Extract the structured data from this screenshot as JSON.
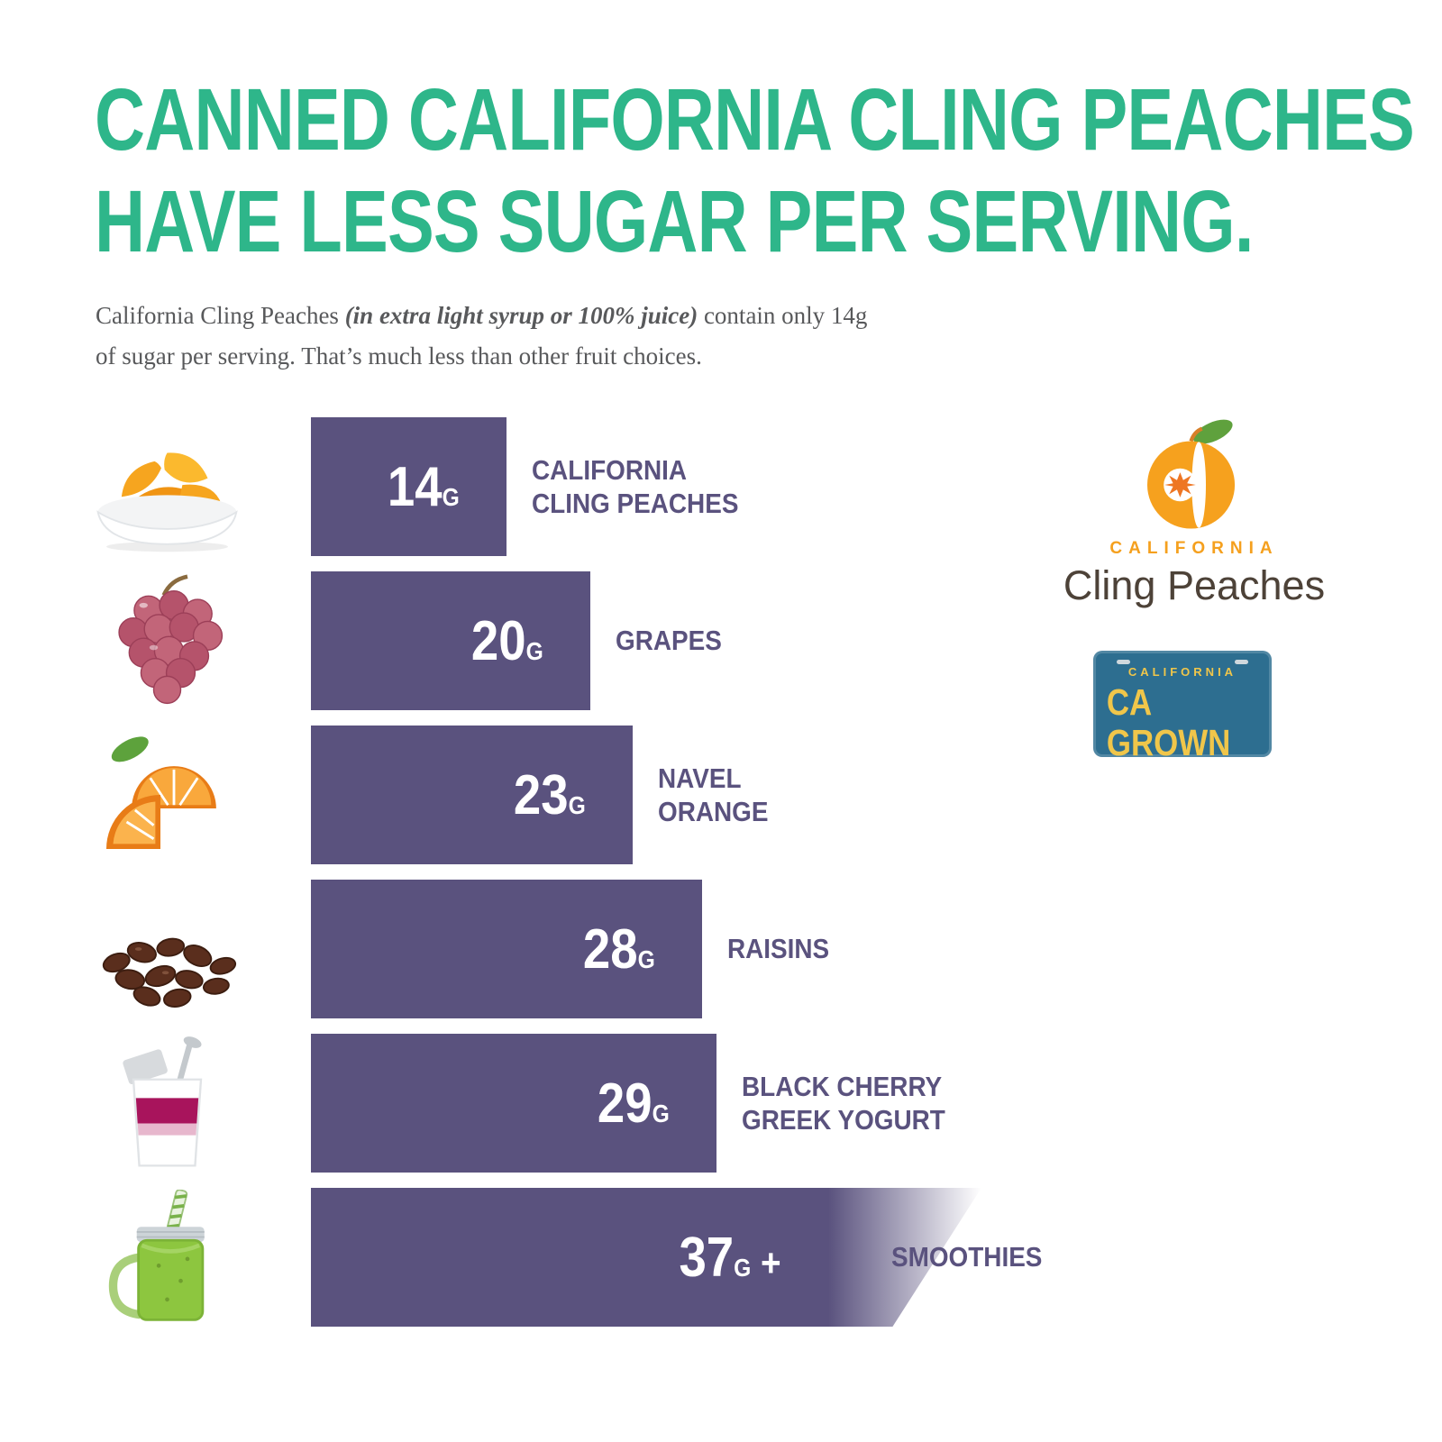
{
  "title": {
    "line1": "CANNED CALIFORNIA CLING PEACHES",
    "line2": "HAVE LESS SUGAR PER SERVING."
  },
  "subtitle": {
    "part1": "California Cling Peaches ",
    "part2": "(in extra light syrup or 100% juice)",
    "part3": " contain only 14g of sugar per serving. That’s much less than other fruit choices."
  },
  "chart_data": {
    "type": "bar",
    "orientation": "horizontal",
    "title": "Grams of sugar per serving by fruit choice",
    "unit": "g",
    "xlim": [
      0,
      40
    ],
    "grid": false,
    "legend": false,
    "bar_color": "#5a527e",
    "categories": [
      "California Cling Peaches",
      "Grapes",
      "Navel Orange",
      "Raisins",
      "Black Cherry Greek Yogurt",
      "Smoothies"
    ],
    "values": [
      14,
      20,
      23,
      28,
      29,
      37
    ],
    "rows": [
      {
        "grams": 14,
        "value": "14",
        "suffix": "G",
        "label": "CALIFORNIA\nCLING PEACHES",
        "icon": "peach-bowl"
      },
      {
        "grams": 20,
        "value": "20",
        "suffix": "G",
        "label": "GRAPES",
        "icon": "grapes"
      },
      {
        "grams": 23,
        "value": "23",
        "suffix": "G",
        "label": "NAVEL\nORANGE",
        "icon": "orange"
      },
      {
        "grams": 28,
        "value": "28",
        "suffix": "G",
        "label": "RAISINS",
        "icon": "raisins"
      },
      {
        "grams": 29,
        "value": "29",
        "suffix": "G",
        "label": "BLACK CHERRY\nGREEK YOGURT",
        "icon": "yogurt"
      },
      {
        "grams": 37,
        "value": "37",
        "suffix": "G",
        "plus": "+",
        "label": "SMOOTHIES",
        "icon": "smoothie",
        "extended": true
      }
    ]
  },
  "logos": {
    "cling_peaches": {
      "top": "CALIFORNIA",
      "bottom": "Cling Peaches"
    },
    "ca_grown": {
      "top": "CALIFORNIA",
      "main": "CA GROWN"
    }
  },
  "colors": {
    "title": "#2eb68a",
    "bar": "#5a527e",
    "label": "#5a527e",
    "body_text": "#58595b",
    "logo_orange": "#f5a01e",
    "plate_blue": "#2d6e90",
    "plate_yellow": "#f0c64a"
  }
}
